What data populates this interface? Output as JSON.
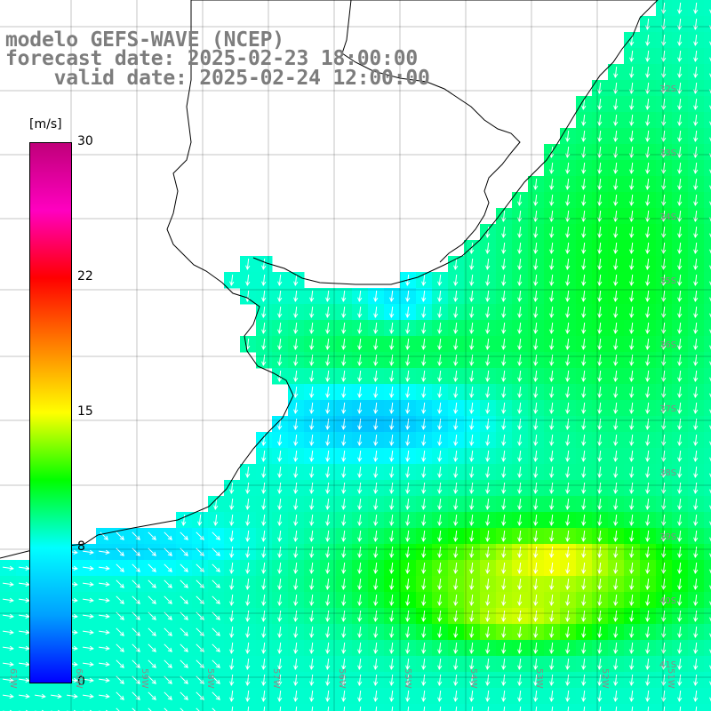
{
  "title": {
    "line1": "modelo GEFS-WAVE (NCEP)",
    "line2": "forecast date: 2025-02-23 18:00:00",
    "line3": "    valid date: 2025-02-24 12:00:00"
  },
  "colorbar": {
    "unit": "[m/s]",
    "range": [
      0,
      30
    ],
    "ticks": [
      "30",
      "22",
      "15",
      "8",
      "0"
    ],
    "tick_values": [
      30,
      22.5,
      15,
      7.5,
      0
    ],
    "colors": [
      "#0000ff",
      "#00a0ff",
      "#00ffff",
      "#00ff00",
      "#ffff00",
      "#ff8000",
      "#ff0000",
      "#ff00c0",
      "#c0007a"
    ]
  },
  "map": {
    "variable": "wind speed and direction",
    "land_color": "#ffffff",
    "coastline_color": "#000000",
    "grid_color": "#000000",
    "lat_labels": [
      "32S",
      "33S",
      "34S",
      "35S",
      "36S",
      "37S",
      "38S",
      "39S",
      "40S",
      "41S"
    ],
    "lon_labels": [
      "61W",
      "60W",
      "59W",
      "58W",
      "57W",
      "56W",
      "55W",
      "54W",
      "53W",
      "52W",
      "51W"
    ]
  }
}
